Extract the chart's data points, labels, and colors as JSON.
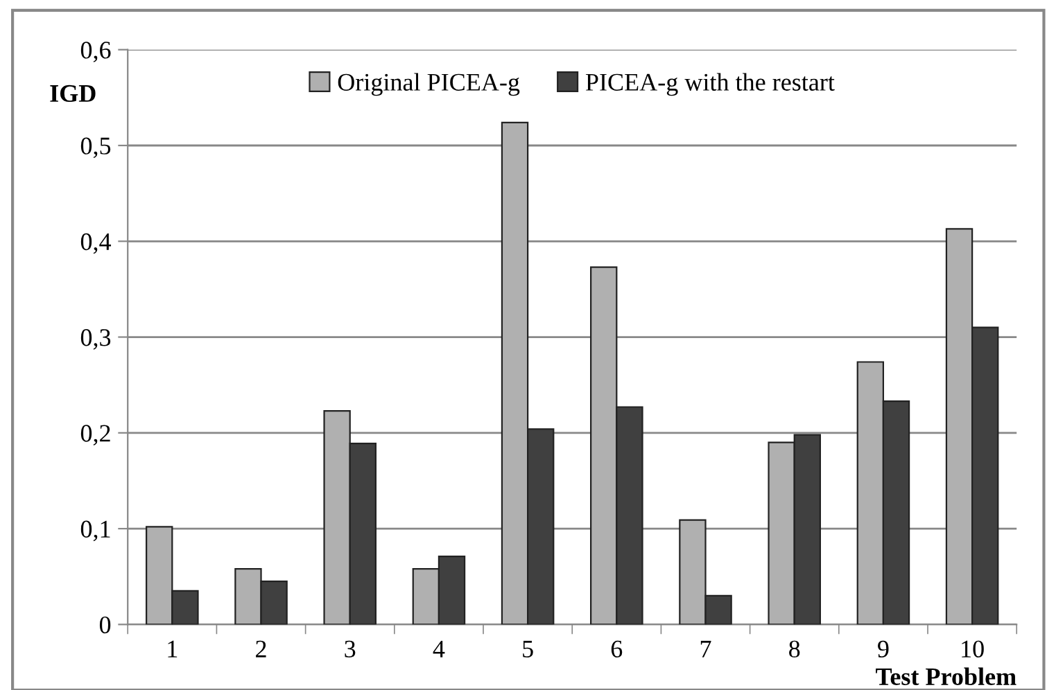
{
  "chart_data": {
    "type": "bar",
    "xlabel": "Test Problem",
    "ylabel": "IGD",
    "categories": [
      "1",
      "2",
      "3",
      "4",
      "5",
      "6",
      "7",
      "8",
      "9",
      "10"
    ],
    "series": [
      {
        "name": "Original PICEA-g",
        "color": "#b0b0b0",
        "values": [
          0.102,
          0.058,
          0.223,
          0.058,
          0.524,
          0.373,
          0.109,
          0.19,
          0.274,
          0.413
        ]
      },
      {
        "name": "PICEA-g with the restart",
        "color": "#404040",
        "values": [
          0.035,
          0.045,
          0.189,
          0.071,
          0.204,
          0.227,
          0.03,
          0.198,
          0.233,
          0.31
        ]
      }
    ],
    "ylim": [
      0,
      0.6
    ],
    "yticks": [
      0,
      {
        "value": 0.1,
        "label": "0,1"
      },
      {
        "value": 0.2,
        "label": "0,2"
      },
      {
        "value": 0.3,
        "label": "0,3"
      },
      {
        "value": 0.4,
        "label": "0,4"
      },
      {
        "value": 0.5,
        "label": "0,5"
      },
      {
        "value": 0.6,
        "label": "0,6"
      }
    ],
    "grid": "y",
    "legend": "top"
  }
}
